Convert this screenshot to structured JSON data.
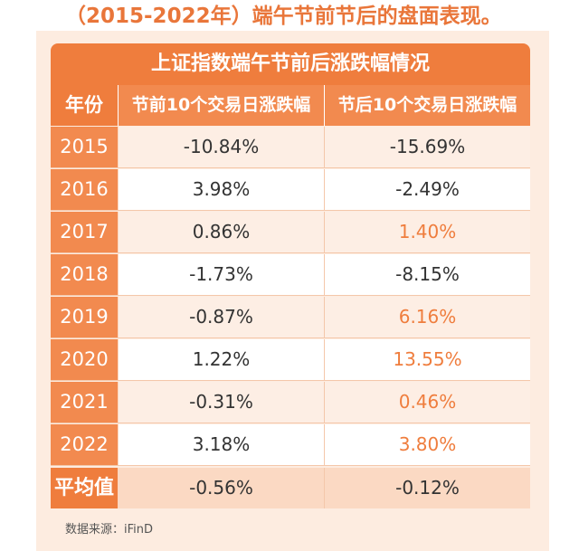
{
  "heading": "（2015-2022年）端午节前节后的盘面表现。",
  "table": {
    "title": "上证指数端午节前后涨跌幅情况",
    "headers": [
      "年份",
      "节前10个交易日涨跌幅",
      "节后10个交易日涨跌幅"
    ],
    "rows": [
      {
        "year": "2015",
        "before": "-10.84%",
        "after": "-15.69%",
        "after_positive": false
      },
      {
        "year": "2016",
        "before": "3.98%",
        "after": "-2.49%",
        "after_positive": false
      },
      {
        "year": "2017",
        "before": "0.86%",
        "after": "1.40%",
        "after_positive": true
      },
      {
        "year": "2018",
        "before": "-1.73%",
        "after": "-8.15%",
        "after_positive": false
      },
      {
        "year": "2019",
        "before": "-0.87%",
        "after": "6.16%",
        "after_positive": true
      },
      {
        "year": "2020",
        "before": "1.22%",
        "after": "13.55%",
        "after_positive": true
      },
      {
        "year": "2021",
        "before": "-0.31%",
        "after": "0.46%",
        "after_positive": true
      },
      {
        "year": "2022",
        "before": "3.18%",
        "after": "3.80%",
        "after_positive": true
      }
    ],
    "average": {
      "label": "平均值",
      "before": "-0.56%",
      "after": "-0.12%"
    }
  },
  "source": "数据来源：iFinD",
  "colors": {
    "accent": "#ef7d3d",
    "header_cell": "#f28a4f",
    "card_bg": "#fdece0",
    "alt_row": "#fdeee4",
    "avg_row": "#fbd9c3",
    "positive_text": "#ef7d3d"
  }
}
